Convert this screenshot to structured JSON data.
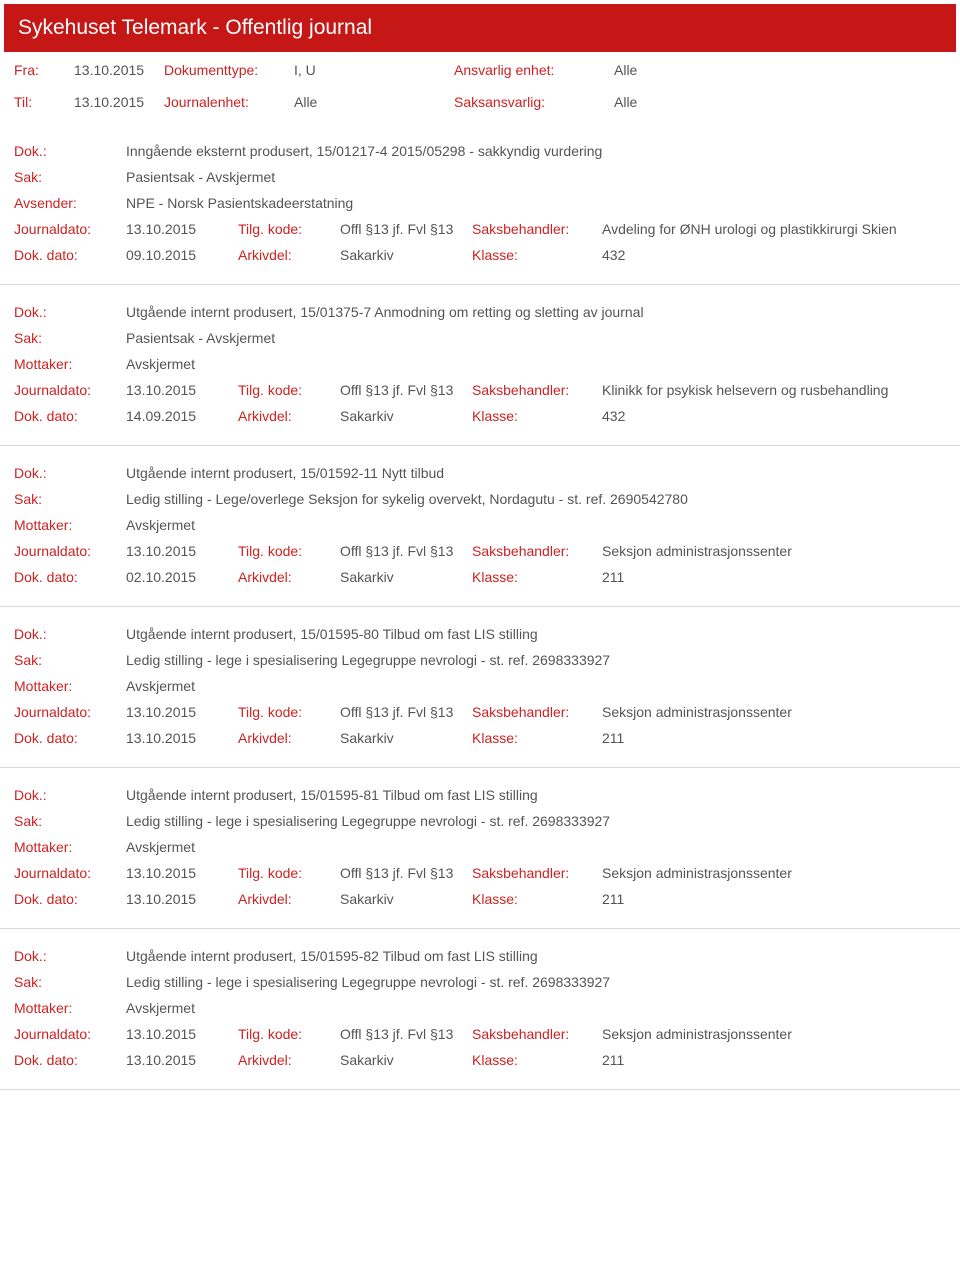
{
  "header": {
    "title": "Sykehuset Telemark - Offentlig journal"
  },
  "filters": {
    "fra_lbl": "Fra:",
    "fra_val": "13.10.2015",
    "til_lbl": "Til:",
    "til_val": "13.10.2015",
    "doktype_lbl": "Dokumenttype:",
    "doktype_val": "I, U",
    "journalenhet_lbl": "Journalenhet:",
    "journalenhet_val": "Alle",
    "ansvarlig_lbl": "Ansvarlig enhet:",
    "ansvarlig_val": "Alle",
    "saksansvarlig_lbl": "Saksansvarlig:",
    "saksansvarlig_val": "Alle"
  },
  "labels": {
    "dok": "Dok.:",
    "sak": "Sak:",
    "avsender": "Avsender:",
    "mottaker": "Mottaker:",
    "journaldato": "Journaldato:",
    "dokdato": "Dok. dato:",
    "tilgkode": "Tilg. kode:",
    "arkivdel": "Arkivdel:",
    "saksbehandler": "Saksbehandler:",
    "klasse": "Klasse:"
  },
  "entries": [
    {
      "dok": "Inngående eksternt produsert, 15/01217-4 2015/05298 - sakkyndig vurdering",
      "sak": "Pasientsak - Avskjermet",
      "party_lbl": "Avsender:",
      "party_val": "NPE - Norsk Pasientskadeerstatning",
      "journaldato": "13.10.2015",
      "tilgkode": "Offl §13 jf. Fvl §13",
      "saksbehandler": "Avdeling for ØNH urologi og plastikkirurgi Skien",
      "dokdato": "09.10.2015",
      "arkivdel": "Sakarkiv",
      "klasse": "432"
    },
    {
      "dok": "Utgående internt produsert, 15/01375-7 Anmodning om retting og sletting av journal",
      "sak": "Pasientsak - Avskjermet",
      "party_lbl": "Mottaker:",
      "party_val": "Avskjermet",
      "journaldato": "13.10.2015",
      "tilgkode": "Offl §13 jf. Fvl §13",
      "saksbehandler": "Klinikk for psykisk helsevern og rusbehandling",
      "dokdato": "14.09.2015",
      "arkivdel": "Sakarkiv",
      "klasse": "432"
    },
    {
      "dok": "Utgående internt produsert, 15/01592-11 Nytt tilbud",
      "sak": "Ledig stilling - Lege/overlege Seksjon for sykelig overvekt, Nordagutu - st. ref. 2690542780",
      "party_lbl": "Mottaker:",
      "party_val": "Avskjermet",
      "journaldato": "13.10.2015",
      "tilgkode": "Offl §13 jf. Fvl §13",
      "saksbehandler": "Seksjon administrasjonssenter",
      "dokdato": "02.10.2015",
      "arkivdel": "Sakarkiv",
      "klasse": "211"
    },
    {
      "dok": "Utgående internt produsert, 15/01595-80 Tilbud om fast LIS stilling",
      "sak": "Ledig stilling - lege i spesialisering Legegruppe nevrologi - st. ref. 2698333927",
      "party_lbl": "Mottaker:",
      "party_val": "Avskjermet",
      "journaldato": "13.10.2015",
      "tilgkode": "Offl §13 jf. Fvl §13",
      "saksbehandler": "Seksjon administrasjonssenter",
      "dokdato": "13.10.2015",
      "arkivdel": "Sakarkiv",
      "klasse": "211"
    },
    {
      "dok": "Utgående internt produsert, 15/01595-81 Tilbud om fast LIS stilling",
      "sak": "Ledig stilling - lege i spesialisering Legegruppe nevrologi - st. ref. 2698333927",
      "party_lbl": "Mottaker:",
      "party_val": "Avskjermet",
      "journaldato": "13.10.2015",
      "tilgkode": "Offl §13 jf. Fvl §13",
      "saksbehandler": "Seksjon administrasjonssenter",
      "dokdato": "13.10.2015",
      "arkivdel": "Sakarkiv",
      "klasse": "211"
    },
    {
      "dok": "Utgående internt produsert, 15/01595-82 Tilbud om fast LIS stilling",
      "sak": "Ledig stilling - lege i spesialisering Legegruppe nevrologi - st. ref. 2698333927",
      "party_lbl": "Mottaker:",
      "party_val": "Avskjermet",
      "journaldato": "13.10.2015",
      "tilgkode": "Offl §13 jf. Fvl §13",
      "saksbehandler": "Seksjon administrasjonssenter",
      "dokdato": "13.10.2015",
      "arkivdel": "Sakarkiv",
      "klasse": "211"
    }
  ]
}
